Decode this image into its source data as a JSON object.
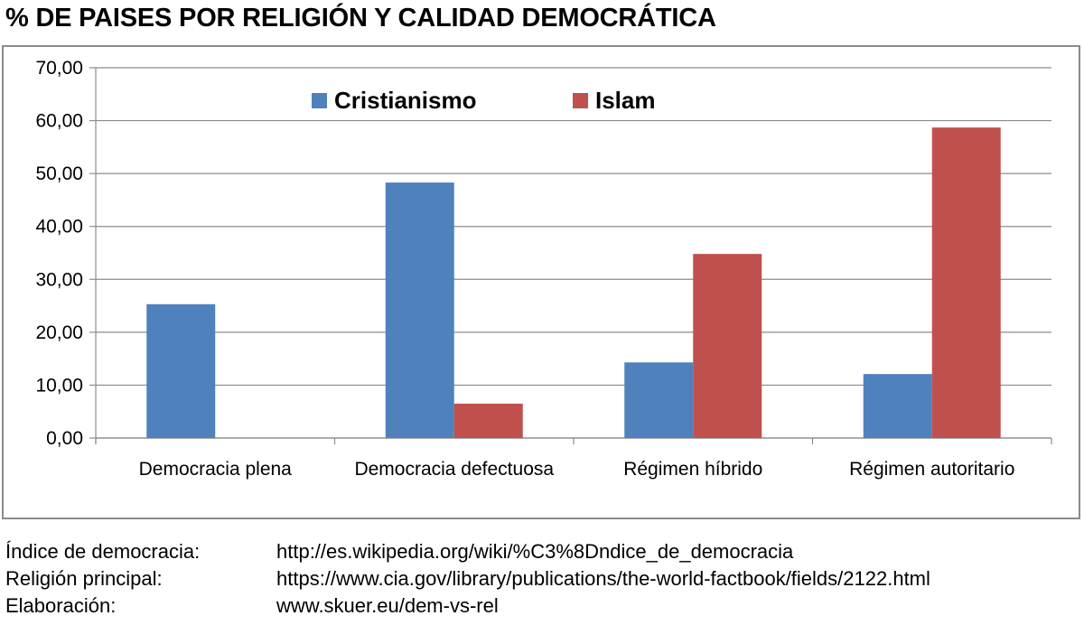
{
  "title": "% DE PAISES POR RELIGIÓN Y CALIDAD DEMOCRÁTICA",
  "colors": {
    "cristianismo": "#4f81bd",
    "islam": "#c0504d",
    "gridline": "#8c8c8c",
    "axis": "#8c8c8c"
  },
  "chart_data": {
    "type": "bar",
    "categories": [
      "Democracia plena",
      "Democracia defectuosa",
      "Régimen híbrido",
      "Régimen autoritario"
    ],
    "series": [
      {
        "name": "Cristianismo",
        "color": "#4f81bd",
        "values": [
          25.3,
          48.3,
          14.3,
          12.1
        ]
      },
      {
        "name": "Islam",
        "color": "#c0504d",
        "values": [
          0,
          6.5,
          34.8,
          58.7
        ]
      }
    ],
    "ylim": [
      0,
      70
    ],
    "yticks": [
      "0,00",
      "10,00",
      "20,00",
      "30,00",
      "40,00",
      "50,00",
      "60,00",
      "70,00"
    ],
    "grid": true,
    "legend_position": "top-center"
  },
  "sources": [
    {
      "label": "Índice de democracia:",
      "value": "http://es.wikipedia.org/wiki/%C3%8Dndice_de_democracia"
    },
    {
      "label": "Religión principal:",
      "value": "https://www.cia.gov/library/publications/the-world-factbook/fields/2122.html"
    },
    {
      "label": "Elaboración:",
      "value": "www.skuer.eu/dem-vs-rel"
    }
  ]
}
